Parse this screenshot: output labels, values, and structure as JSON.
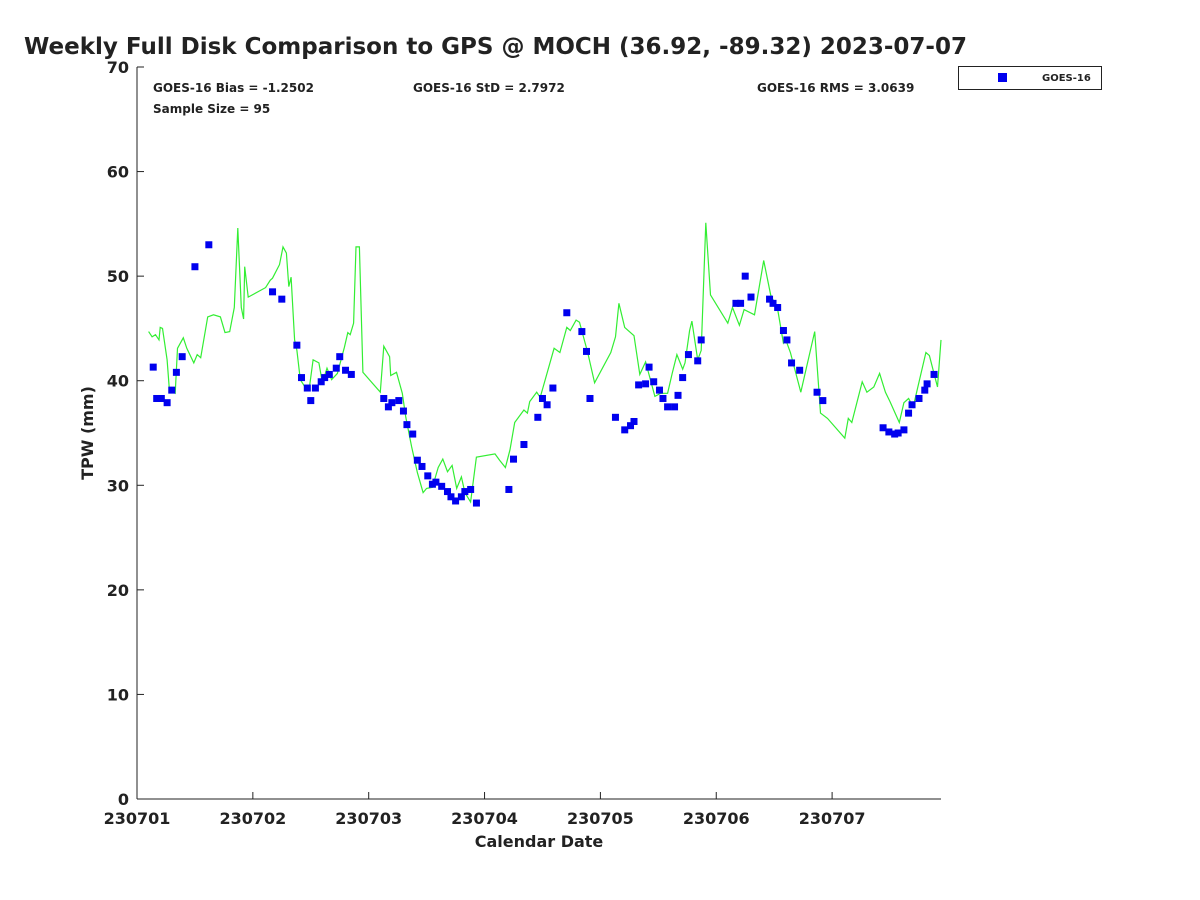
{
  "chart_data": {
    "type": "scatter",
    "title": "Weekly Full Disk Comparison to GPS @ MOCH (36.92, -89.32) 2023-07-07",
    "xlabel": "Calendar Date",
    "ylabel": "TPW (mm)",
    "xlim": [
      0,
      6.94
    ],
    "ylim": [
      0,
      70
    ],
    "x_unit": "days since 230701",
    "x_ticks": [
      0,
      1,
      2,
      3,
      4,
      5,
      6
    ],
    "x_tick_labels": [
      "230701",
      "230702",
      "230703",
      "230704",
      "230705",
      "230706",
      "230707"
    ],
    "y_ticks": [
      0,
      10,
      20,
      30,
      40,
      50,
      60,
      70
    ],
    "y_tick_labels": [
      "0",
      "10",
      "20",
      "30",
      "40",
      "50",
      "60",
      "70"
    ],
    "grid": false,
    "legend": {
      "placement": "top-right outside",
      "entries": [
        "GOES-16"
      ]
    },
    "annotations": {
      "bias": "GOES-16 Bias = -1.2502",
      "std": "GOES-16 StD = 2.7972",
      "rms": "GOES-16 RMS = 3.0639",
      "sample": "Sample Size = 95"
    },
    "colors": {
      "goes": "#0000ee",
      "gps": "#33ee33"
    },
    "series": [
      {
        "name": "GOES-16",
        "kind": "scatter",
        "points": [
          [
            0.14,
            41.3
          ],
          [
            0.17,
            38.3
          ],
          [
            0.21,
            38.3
          ],
          [
            0.26,
            37.9
          ],
          [
            0.3,
            39.1
          ],
          [
            0.34,
            40.8
          ],
          [
            0.39,
            42.3
          ],
          [
            0.5,
            50.9
          ],
          [
            0.62,
            53.0
          ],
          [
            1.17,
            48.5
          ],
          [
            1.25,
            47.8
          ],
          [
            1.38,
            43.4
          ],
          [
            1.42,
            40.3
          ],
          [
            1.47,
            39.3
          ],
          [
            1.5,
            38.1
          ],
          [
            1.54,
            39.3
          ],
          [
            1.59,
            39.9
          ],
          [
            1.62,
            40.3
          ],
          [
            1.66,
            40.6
          ],
          [
            1.72,
            41.2
          ],
          [
            1.75,
            42.3
          ],
          [
            1.8,
            41.0
          ],
          [
            1.85,
            40.6
          ],
          [
            2.13,
            38.3
          ],
          [
            2.17,
            37.5
          ],
          [
            2.2,
            37.9
          ],
          [
            2.26,
            38.1
          ],
          [
            2.3,
            37.1
          ],
          [
            2.33,
            35.8
          ],
          [
            2.38,
            34.9
          ],
          [
            2.42,
            32.4
          ],
          [
            2.46,
            31.8
          ],
          [
            2.51,
            30.9
          ],
          [
            2.55,
            30.1
          ],
          [
            2.58,
            30.3
          ],
          [
            2.63,
            29.9
          ],
          [
            2.68,
            29.4
          ],
          [
            2.71,
            28.9
          ],
          [
            2.75,
            28.5
          ],
          [
            2.8,
            28.9
          ],
          [
            2.83,
            29.4
          ],
          [
            2.88,
            29.6
          ],
          [
            2.93,
            28.3
          ],
          [
            3.21,
            29.6
          ],
          [
            3.25,
            32.5
          ],
          [
            3.34,
            33.9
          ],
          [
            3.46,
            36.5
          ],
          [
            3.5,
            38.3
          ],
          [
            3.54,
            37.7
          ],
          [
            3.59,
            39.3
          ],
          [
            3.71,
            46.5
          ],
          [
            3.84,
            44.7
          ],
          [
            3.88,
            42.8
          ],
          [
            3.91,
            38.3
          ],
          [
            4.13,
            36.5
          ],
          [
            4.21,
            35.3
          ],
          [
            4.26,
            35.7
          ],
          [
            4.29,
            36.1
          ],
          [
            4.33,
            39.6
          ],
          [
            4.39,
            39.7
          ],
          [
            4.42,
            41.3
          ],
          [
            4.46,
            39.9
          ],
          [
            4.51,
            39.1
          ],
          [
            4.54,
            38.3
          ],
          [
            4.58,
            37.5
          ],
          [
            4.64,
            37.5
          ],
          [
            4.67,
            38.6
          ],
          [
            4.71,
            40.3
          ],
          [
            4.76,
            42.5
          ],
          [
            4.84,
            41.9
          ],
          [
            4.87,
            43.9
          ],
          [
            5.17,
            47.4
          ],
          [
            5.21,
            47.4
          ],
          [
            5.25,
            50.0
          ],
          [
            5.3,
            48.0
          ],
          [
            5.46,
            47.8
          ],
          [
            5.49,
            47.4
          ],
          [
            5.53,
            47.0
          ],
          [
            5.58,
            44.8
          ],
          [
            5.61,
            43.9
          ],
          [
            5.65,
            41.7
          ],
          [
            5.72,
            41.0
          ],
          [
            5.87,
            38.9
          ],
          [
            5.92,
            38.1
          ],
          [
            6.44,
            35.5
          ],
          [
            6.49,
            35.1
          ],
          [
            6.54,
            34.9
          ],
          [
            6.57,
            35.0
          ],
          [
            6.62,
            35.3
          ],
          [
            6.66,
            36.9
          ],
          [
            6.69,
            37.7
          ],
          [
            6.75,
            38.3
          ],
          [
            6.8,
            39.1
          ],
          [
            6.82,
            39.7
          ],
          [
            6.88,
            40.6
          ]
        ]
      },
      {
        "name": "GPS",
        "kind": "line",
        "points": [
          [
            0.1,
            44.7
          ],
          [
            0.13,
            44.2
          ],
          [
            0.16,
            44.4
          ],
          [
            0.19,
            43.9
          ],
          [
            0.2,
            45.1
          ],
          [
            0.22,
            45.0
          ],
          [
            0.26,
            42.0
          ],
          [
            0.28,
            39.1
          ],
          [
            0.33,
            38.8
          ],
          [
            0.35,
            43.1
          ],
          [
            0.4,
            44.1
          ],
          [
            0.43,
            43.1
          ],
          [
            0.49,
            41.7
          ],
          [
            0.52,
            42.5
          ],
          [
            0.55,
            42.2
          ],
          [
            0.61,
            46.1
          ],
          [
            0.66,
            46.3
          ],
          [
            0.72,
            46.1
          ],
          [
            0.76,
            44.6
          ],
          [
            0.8,
            44.7
          ],
          [
            0.84,
            47.0
          ],
          [
            0.87,
            54.6
          ],
          [
            0.9,
            47.0
          ],
          [
            0.92,
            45.9
          ],
          [
            0.93,
            50.9
          ],
          [
            0.96,
            48.0
          ],
          [
            1.11,
            48.9
          ],
          [
            1.15,
            49.6
          ],
          [
            1.17,
            49.8
          ],
          [
            1.23,
            51.1
          ],
          [
            1.26,
            52.8
          ],
          [
            1.29,
            52.2
          ],
          [
            1.31,
            49.0
          ],
          [
            1.33,
            49.9
          ],
          [
            1.36,
            43.9
          ],
          [
            1.38,
            42.9
          ],
          [
            1.41,
            40.1
          ],
          [
            1.45,
            39.4
          ],
          [
            1.49,
            39.5
          ],
          [
            1.52,
            42.0
          ],
          [
            1.57,
            41.7
          ],
          [
            1.6,
            39.8
          ],
          [
            1.64,
            41.2
          ],
          [
            1.68,
            40.1
          ],
          [
            1.73,
            40.7
          ],
          [
            1.79,
            43.2
          ],
          [
            1.82,
            44.6
          ],
          [
            1.84,
            44.4
          ],
          [
            1.87,
            45.5
          ],
          [
            1.89,
            52.8
          ],
          [
            1.92,
            52.8
          ],
          [
            1.95,
            40.8
          ],
          [
            2.1,
            38.9
          ],
          [
            2.13,
            43.3
          ],
          [
            2.18,
            42.3
          ],
          [
            2.19,
            40.5
          ],
          [
            2.24,
            40.8
          ],
          [
            2.29,
            38.8
          ],
          [
            2.32,
            36.5
          ],
          [
            2.37,
            33.7
          ],
          [
            2.42,
            31.2
          ],
          [
            2.47,
            29.3
          ],
          [
            2.5,
            29.7
          ],
          [
            2.55,
            29.8
          ],
          [
            2.6,
            31.7
          ],
          [
            2.64,
            32.5
          ],
          [
            2.68,
            31.3
          ],
          [
            2.72,
            31.9
          ],
          [
            2.76,
            29.7
          ],
          [
            2.8,
            30.8
          ],
          [
            2.83,
            29.3
          ],
          [
            2.88,
            28.4
          ],
          [
            2.93,
            32.7
          ],
          [
            3.09,
            33.0
          ],
          [
            3.13,
            32.4
          ],
          [
            3.18,
            31.7
          ],
          [
            3.22,
            33.4
          ],
          [
            3.26,
            36.0
          ],
          [
            3.34,
            37.2
          ],
          [
            3.37,
            36.9
          ],
          [
            3.39,
            38.0
          ],
          [
            3.45,
            38.9
          ],
          [
            3.48,
            38.4
          ],
          [
            3.6,
            43.1
          ],
          [
            3.65,
            42.7
          ],
          [
            3.71,
            45.1
          ],
          [
            3.74,
            44.8
          ],
          [
            3.79,
            45.8
          ],
          [
            3.82,
            45.6
          ],
          [
            3.89,
            42.7
          ],
          [
            3.95,
            39.8
          ],
          [
            4.09,
            42.7
          ],
          [
            4.13,
            44.2
          ],
          [
            4.16,
            47.4
          ],
          [
            4.21,
            45.1
          ],
          [
            4.29,
            44.3
          ],
          [
            4.34,
            40.6
          ],
          [
            4.39,
            41.8
          ],
          [
            4.47,
            38.5
          ],
          [
            4.52,
            38.8
          ],
          [
            4.58,
            38.8
          ],
          [
            4.62,
            40.7
          ],
          [
            4.66,
            42.5
          ],
          [
            4.71,
            41.1
          ],
          [
            4.73,
            41.7
          ],
          [
            4.77,
            44.8
          ],
          [
            4.79,
            45.7
          ],
          [
            4.84,
            42.0
          ],
          [
            4.87,
            42.9
          ],
          [
            4.91,
            55.1
          ],
          [
            4.95,
            48.2
          ],
          [
            5.1,
            45.5
          ],
          [
            5.14,
            47.0
          ],
          [
            5.2,
            45.3
          ],
          [
            5.24,
            46.8
          ],
          [
            5.33,
            46.3
          ],
          [
            5.41,
            51.5
          ],
          [
            5.47,
            48.2
          ],
          [
            5.53,
            46.8
          ],
          [
            5.58,
            43.6
          ],
          [
            5.6,
            43.9
          ],
          [
            5.64,
            42.7
          ],
          [
            5.73,
            38.9
          ],
          [
            5.85,
            44.7
          ],
          [
            5.9,
            36.9
          ],
          [
            5.96,
            36.4
          ],
          [
            6.11,
            34.5
          ],
          [
            6.14,
            36.4
          ],
          [
            6.17,
            36.0
          ],
          [
            6.26,
            39.9
          ],
          [
            6.3,
            38.9
          ],
          [
            6.36,
            39.4
          ],
          [
            6.41,
            40.7
          ],
          [
            6.46,
            38.9
          ],
          [
            6.5,
            38.0
          ],
          [
            6.58,
            36.0
          ],
          [
            6.62,
            37.9
          ],
          [
            6.66,
            38.3
          ],
          [
            6.7,
            37.5
          ],
          [
            6.81,
            42.7
          ],
          [
            6.84,
            42.4
          ],
          [
            6.91,
            39.4
          ],
          [
            6.94,
            43.9
          ]
        ]
      }
    ]
  }
}
